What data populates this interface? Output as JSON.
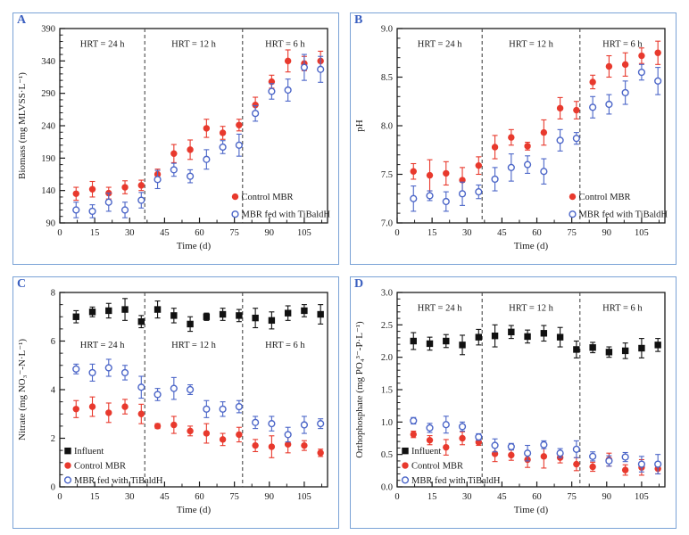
{
  "figure": {
    "background": "#ffffff",
    "panel_border_color": "#7aa2d6",
    "panel_letter_color": "#3a5fc0",
    "dashed_line_color": "#4a4a4a",
    "axis_color": "#1a1a1a"
  },
  "chart_data": [
    {
      "panel_label": "A",
      "type": "scatter",
      "xlabel": "Time (d)",
      "ylabel": "Biomass (mg MLVSS·L⁻¹)",
      "xlim": [
        0,
        115
      ],
      "ylim": [
        90,
        390
      ],
      "xticks": [
        0,
        15,
        30,
        45,
        60,
        75,
        90,
        105
      ],
      "xtick_labels": [
        "0",
        "15",
        "30",
        "45",
        "60",
        "75",
        "90",
        "105"
      ],
      "yticks": [
        90,
        140,
        190,
        240,
        290,
        340,
        390
      ],
      "ytick_labels": [
        "90",
        "140",
        "190",
        "240",
        "290",
        "340",
        "390"
      ],
      "x_minor_step": 7.5,
      "y_minor_step": 10,
      "x": [
        7,
        14,
        21,
        28,
        35,
        42,
        49,
        56,
        63,
        70,
        77,
        84,
        91,
        98,
        105,
        112
      ],
      "series": [
        {
          "name": "Control MBR",
          "marker": "circle",
          "fill": "solid",
          "color": "#e8392d",
          "values": [
            135,
            142,
            136,
            145,
            148,
            165,
            197,
            203,
            236,
            229,
            241,
            272,
            308,
            340,
            336,
            340
          ],
          "errors": [
            10,
            12,
            9,
            10,
            8,
            8,
            14,
            15,
            14,
            10,
            9,
            12,
            10,
            17,
            11,
            15
          ]
        },
        {
          "name": "MBR fed with TiBaldH",
          "marker": "circle",
          "fill": "open",
          "color": "#4c66c8",
          "values": [
            110,
            108,
            122,
            110,
            125,
            157,
            172,
            162,
            188,
            207,
            210,
            259,
            293,
            295,
            330,
            327
          ],
          "errors": [
            12,
            10,
            14,
            12,
            12,
            14,
            10,
            10,
            15,
            10,
            17,
            12,
            12,
            17,
            20,
            20
          ]
        }
      ],
      "dashed_lines_x": [
        36.5,
        78.5
      ],
      "region_labels": [
        "HRT = 24 h",
        "HRT = 12 h",
        "HRT = 6 h"
      ],
      "region_label_y_frac": 0.075,
      "legend": {
        "position": "bottom-right"
      }
    },
    {
      "panel_label": "B",
      "type": "scatter",
      "xlabel": "Time (d)",
      "ylabel": "pH",
      "xlim": [
        0,
        115
      ],
      "ylim": [
        7.0,
        9.0
      ],
      "xticks": [
        0,
        15,
        30,
        45,
        60,
        75,
        90,
        105
      ],
      "xtick_labels": [
        "0",
        "15",
        "30",
        "45",
        "60",
        "75",
        "90",
        "105"
      ],
      "yticks": [
        7.0,
        7.5,
        8.0,
        8.5,
        9.0
      ],
      "ytick_labels": [
        "7.0",
        "7.5",
        "8.0",
        "8.5",
        "9.0"
      ],
      "x_minor_step": 7.5,
      "y_minor_step": 0.1,
      "x": [
        7,
        14,
        21,
        28,
        35,
        42,
        49,
        56,
        63,
        70,
        77,
        84,
        91,
        98,
        105,
        112
      ],
      "series": [
        {
          "name": "Control MBR",
          "marker": "circle",
          "fill": "solid",
          "color": "#e8392d",
          "values": [
            7.53,
            7.49,
            7.51,
            7.44,
            7.59,
            7.78,
            7.88,
            7.79,
            7.93,
            8.18,
            8.16,
            8.45,
            8.61,
            8.63,
            8.72,
            8.75
          ],
          "errors": [
            0.08,
            0.16,
            0.12,
            0.13,
            0.09,
            0.12,
            0.08,
            0.04,
            0.13,
            0.11,
            0.09,
            0.07,
            0.11,
            0.12,
            0.08,
            0.12
          ]
        },
        {
          "name": "MBR fed with TiBaldH",
          "marker": "circle",
          "fill": "open",
          "color": "#4c66c8",
          "values": [
            7.25,
            7.28,
            7.22,
            7.3,
            7.32,
            7.45,
            7.57,
            7.6,
            7.53,
            7.85,
            7.87,
            8.19,
            8.22,
            8.34,
            8.55,
            8.46
          ],
          "errors": [
            0.13,
            0.05,
            0.1,
            0.12,
            0.07,
            0.12,
            0.14,
            0.09,
            0.13,
            0.11,
            0.06,
            0.11,
            0.1,
            0.12,
            0.08,
            0.14
          ]
        }
      ],
      "dashed_lines_x": [
        36.5,
        78.5
      ],
      "region_labels": [
        "HRT = 24 h",
        "HRT = 12 h",
        "HRT = 6 h"
      ],
      "region_label_y_frac": 0.075,
      "legend": {
        "position": "bottom-right"
      }
    },
    {
      "panel_label": "C",
      "type": "scatter",
      "xlabel": "Time (d)",
      "ylabel": "Nitrate (mg NO₃⁻-N·L⁻¹)",
      "xlim": [
        0,
        115
      ],
      "ylim": [
        0,
        8
      ],
      "xticks": [
        0,
        15,
        30,
        45,
        60,
        75,
        90,
        105
      ],
      "xtick_labels": [
        "0",
        "15",
        "30",
        "45",
        "60",
        "75",
        "90",
        "105"
      ],
      "yticks": [
        0,
        2,
        4,
        6,
        8
      ],
      "ytick_labels": [
        "0",
        "2",
        "4",
        "6",
        "8"
      ],
      "x_minor_step": 7.5,
      "y_minor_step": 0.5,
      "x": [
        7,
        14,
        21,
        28,
        35,
        42,
        49,
        56,
        63,
        70,
        77,
        84,
        91,
        98,
        105,
        112
      ],
      "series": [
        {
          "name": "Influent",
          "marker": "square",
          "fill": "solid",
          "color": "#111111",
          "values": [
            7.0,
            7.2,
            7.25,
            7.3,
            6.8,
            7.3,
            7.05,
            6.7,
            7.0,
            7.1,
            7.05,
            6.95,
            6.85,
            7.15,
            7.25,
            7.1
          ],
          "errors": [
            0.25,
            0.2,
            0.3,
            0.45,
            0.25,
            0.35,
            0.3,
            0.3,
            0.15,
            0.25,
            0.25,
            0.4,
            0.35,
            0.3,
            0.25,
            0.4
          ]
        },
        {
          "name": "Control MBR",
          "marker": "circle",
          "fill": "solid",
          "color": "#e8392d",
          "values": [
            3.2,
            3.3,
            3.05,
            3.3,
            3.0,
            2.5,
            2.55,
            2.3,
            2.2,
            1.95,
            2.15,
            1.7,
            1.65,
            1.75,
            1.7,
            1.4
          ],
          "errors": [
            0.35,
            0.4,
            0.4,
            0.3,
            0.4,
            0.1,
            0.35,
            0.2,
            0.4,
            0.25,
            0.3,
            0.25,
            0.45,
            0.35,
            0.2,
            0.15
          ]
        },
        {
          "name": "MBR fed with TiBaldH",
          "marker": "circle",
          "fill": "open",
          "color": "#4c66c8",
          "values": [
            4.85,
            4.7,
            4.9,
            4.7,
            4.1,
            3.8,
            4.05,
            4.0,
            3.2,
            3.2,
            3.3,
            2.65,
            2.6,
            2.15,
            2.55,
            2.6
          ],
          "errors": [
            0.2,
            0.35,
            0.35,
            0.3,
            0.45,
            0.25,
            0.45,
            0.2,
            0.35,
            0.3,
            0.25,
            0.25,
            0.3,
            0.3,
            0.35,
            0.2
          ]
        }
      ],
      "dashed_lines_x": [
        36.5,
        78.5
      ],
      "region_labels": [
        "HRT = 24 h",
        "HRT = 12 h",
        "HRT = 6 h"
      ],
      "region_label_y_frac": 0.265,
      "legend": {
        "position": "bottom-left"
      }
    },
    {
      "panel_label": "D",
      "type": "scatter",
      "xlabel": "Time (d)",
      "ylabel": "Orthophosphate (mg PO₄³⁻-P·L⁻¹)",
      "xlim": [
        0,
        115
      ],
      "ylim": [
        0.0,
        3.0
      ],
      "xticks": [
        0,
        15,
        30,
        45,
        60,
        75,
        90,
        105
      ],
      "xtick_labels": [
        "0",
        "15",
        "30",
        "45",
        "60",
        "75",
        "90",
        "105"
      ],
      "yticks": [
        0.0,
        0.5,
        1.0,
        1.5,
        2.0,
        2.5,
        3.0
      ],
      "ytick_labels": [
        "0.0",
        "0.5",
        "1.0",
        "1.5",
        "2.0",
        "2.5",
        "3.0"
      ],
      "x_minor_step": 7.5,
      "y_minor_step": 0.1,
      "x": [
        7,
        14,
        21,
        28,
        35,
        42,
        49,
        56,
        63,
        70,
        77,
        84,
        91,
        98,
        105,
        112
      ],
      "series": [
        {
          "name": "Influent",
          "marker": "square",
          "fill": "solid",
          "color": "#111111",
          "values": [
            2.25,
            2.21,
            2.25,
            2.19,
            2.31,
            2.33,
            2.39,
            2.32,
            2.37,
            2.31,
            2.12,
            2.15,
            2.08,
            2.1,
            2.14,
            2.19
          ],
          "errors": [
            0.13,
            0.1,
            0.1,
            0.15,
            0.12,
            0.17,
            0.1,
            0.1,
            0.12,
            0.15,
            0.13,
            0.08,
            0.08,
            0.12,
            0.15,
            0.1
          ]
        },
        {
          "name": "Control MBR",
          "marker": "circle",
          "fill": "solid",
          "color": "#e8392d",
          "values": [
            0.81,
            0.72,
            0.61,
            0.75,
            0.69,
            0.51,
            0.49,
            0.42,
            0.47,
            0.45,
            0.35,
            0.31,
            0.42,
            0.26,
            0.3,
            0.28
          ],
          "errors": [
            0.05,
            0.07,
            0.12,
            0.1,
            0.05,
            0.12,
            0.08,
            0.12,
            0.18,
            0.08,
            0.1,
            0.07,
            0.1,
            0.08,
            0.12,
            0.08
          ]
        },
        {
          "name": "MBR fed with TiBaldH",
          "marker": "circle",
          "fill": "open",
          "color": "#4c66c8",
          "values": [
            1.02,
            0.91,
            0.96,
            0.93,
            0.77,
            0.64,
            0.62,
            0.52,
            0.65,
            0.52,
            0.58,
            0.47,
            0.4,
            0.46,
            0.35,
            0.35
          ],
          "errors": [
            0.05,
            0.07,
            0.13,
            0.07,
            0.05,
            0.1,
            0.05,
            0.12,
            0.06,
            0.07,
            0.13,
            0.07,
            0.08,
            0.07,
            0.12,
            0.15
          ]
        }
      ],
      "dashed_lines_x": [
        36.5,
        78.5
      ],
      "region_labels": [
        "HRT = 24 h",
        "HRT = 12 h",
        "HRT = 6 h"
      ],
      "region_label_y_frac": 0.075,
      "legend": {
        "position": "bottom-left"
      }
    }
  ]
}
